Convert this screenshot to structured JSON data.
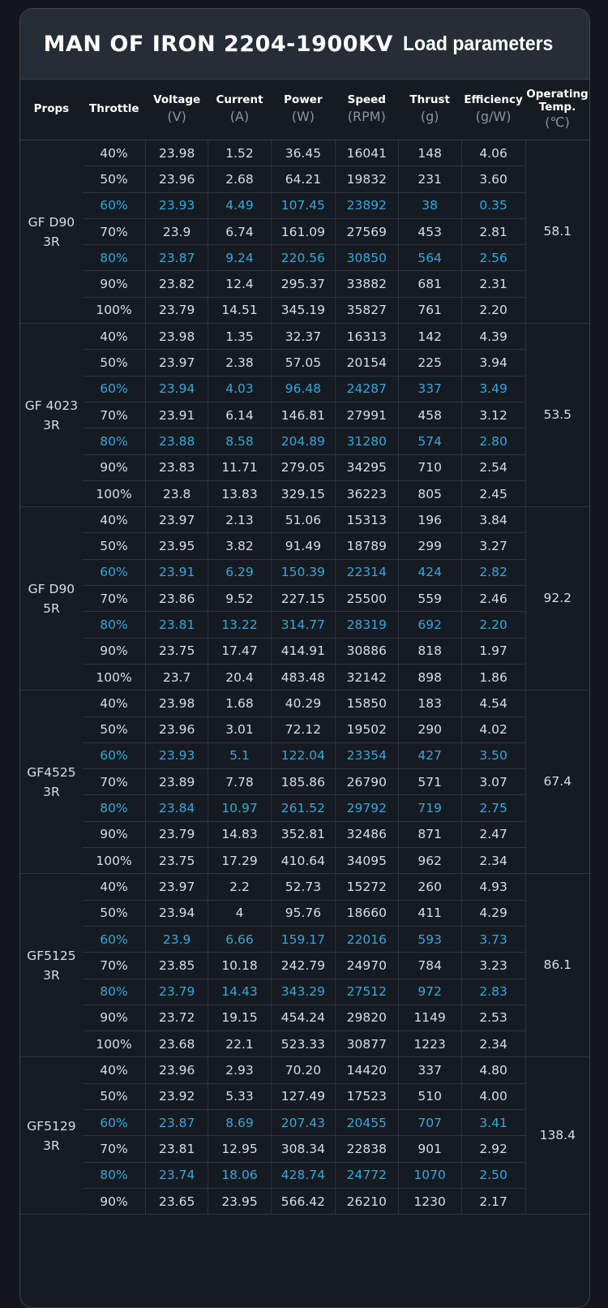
{
  "title": {
    "main": "MAN OF IRON 2204-1900KV",
    "sub": "Load parameters"
  },
  "headers": [
    {
      "label": "Props",
      "unit": ""
    },
    {
      "label": "Throttle",
      "unit": ""
    },
    {
      "label": "Voltage",
      "unit": "(V)"
    },
    {
      "label": "Current",
      "unit": "(A)"
    },
    {
      "label": "Power",
      "unit": "(W)"
    },
    {
      "label": "Speed",
      "unit": "(RPM)"
    },
    {
      "label": "Thrust",
      "unit": "(g)"
    },
    {
      "label": "Efficiency",
      "unit": "(g/W)"
    },
    {
      "label": "Operating Temp.",
      "unit": "(℃)"
    }
  ],
  "highlight_color": "#35a7dc",
  "groups": [
    {
      "prop": [
        "GF D90",
        "3R"
      ],
      "temp": "58.1",
      "rows": [
        [
          "40%",
          "23.98",
          "1.52",
          "36.45",
          "16041",
          "148",
          "4.06"
        ],
        [
          "50%",
          "23.96",
          "2.68",
          "64.21",
          "19832",
          "231",
          "3.60"
        ],
        [
          "60%",
          "23.93",
          "4.49",
          "107.45",
          "23892",
          "38",
          "0.35"
        ],
        [
          "70%",
          "23.9",
          "6.74",
          "161.09",
          "27569",
          "453",
          "2.81"
        ],
        [
          "80%",
          "23.87",
          "9.24",
          "220.56",
          "30850",
          "564",
          "2.56"
        ],
        [
          "90%",
          "23.82",
          "12.4",
          "295.37",
          "33882",
          "681",
          "2.31"
        ],
        [
          "100%",
          "23.79",
          "14.51",
          "345.19",
          "35827",
          "761",
          "2.20"
        ]
      ]
    },
    {
      "prop": [
        "GF 4023",
        "3R"
      ],
      "temp": "53.5",
      "rows": [
        [
          "40%",
          "23.98",
          "1.35",
          "32.37",
          "16313",
          "142",
          "4.39"
        ],
        [
          "50%",
          "23.97",
          "2.38",
          "57.05",
          "20154",
          "225",
          "3.94"
        ],
        [
          "60%",
          "23.94",
          "4.03",
          "96.48",
          "24287",
          "337",
          "3.49"
        ],
        [
          "70%",
          "23.91",
          "6.14",
          "146.81",
          "27991",
          "458",
          "3.12"
        ],
        [
          "80%",
          "23.88",
          "8.58",
          "204.89",
          "31280",
          "574",
          "2.80"
        ],
        [
          "90%",
          "23.83",
          "11.71",
          "279.05",
          "34295",
          "710",
          "2.54"
        ],
        [
          "100%",
          "23.8",
          "13.83",
          "329.15",
          "36223",
          "805",
          "2.45"
        ]
      ]
    },
    {
      "prop": [
        "GF D90",
        "5R"
      ],
      "temp": "92.2",
      "rows": [
        [
          "40%",
          "23.97",
          "2.13",
          "51.06",
          "15313",
          "196",
          "3.84"
        ],
        [
          "50%",
          "23.95",
          "3.82",
          "91.49",
          "18789",
          "299",
          "3.27"
        ],
        [
          "60%",
          "23.91",
          "6.29",
          "150.39",
          "22314",
          "424",
          "2.82"
        ],
        [
          "70%",
          "23.86",
          "9.52",
          "227.15",
          "25500",
          "559",
          "2.46"
        ],
        [
          "80%",
          "23.81",
          "13.22",
          "314.77",
          "28319",
          "692",
          "2.20"
        ],
        [
          "90%",
          "23.75",
          "17.47",
          "414.91",
          "30886",
          "818",
          "1.97"
        ],
        [
          "100%",
          "23.7",
          "20.4",
          "483.48",
          "32142",
          "898",
          "1.86"
        ]
      ]
    },
    {
      "prop": [
        "GF4525",
        "3R"
      ],
      "temp": "67.4",
      "rows": [
        [
          "40%",
          "23.98",
          "1.68",
          "40.29",
          "15850",
          "183",
          "4.54"
        ],
        [
          "50%",
          "23.96",
          "3.01",
          "72.12",
          "19502",
          "290",
          "4.02"
        ],
        [
          "60%",
          "23.93",
          "5.1",
          "122.04",
          "23354",
          "427",
          "3.50"
        ],
        [
          "70%",
          "23.89",
          "7.78",
          "185.86",
          "26790",
          "571",
          "3.07"
        ],
        [
          "80%",
          "23.84",
          "10.97",
          "261.52",
          "29792",
          "719",
          "2.75"
        ],
        [
          "90%",
          "23.79",
          "14.83",
          "352.81",
          "32486",
          "871",
          "2.47"
        ],
        [
          "100%",
          "23.75",
          "17.29",
          "410.64",
          "34095",
          "962",
          "2.34"
        ]
      ]
    },
    {
      "prop": [
        "GF5125",
        "3R"
      ],
      "temp": "86.1",
      "rows": [
        [
          "40%",
          "23.97",
          "2.2",
          "52.73",
          "15272",
          "260",
          "4.93"
        ],
        [
          "50%",
          "23.94",
          "4",
          "95.76",
          "18660",
          "411",
          "4.29"
        ],
        [
          "60%",
          "23.9",
          "6.66",
          "159.17",
          "22016",
          "593",
          "3.73"
        ],
        [
          "70%",
          "23.85",
          "10.18",
          "242.79",
          "24970",
          "784",
          "3.23"
        ],
        [
          "80%",
          "23.79",
          "14.43",
          "343.29",
          "27512",
          "972",
          "2.83"
        ],
        [
          "90%",
          "23.72",
          "19.15",
          "454.24",
          "29820",
          "1149",
          "2.53"
        ],
        [
          "100%",
          "23.68",
          "22.1",
          "523.33",
          "30877",
          "1223",
          "2.34"
        ]
      ]
    },
    {
      "prop": [
        "GF5129",
        "3R"
      ],
      "temp": "138.4",
      "rows": [
        [
          "40%",
          "23.96",
          "2.93",
          "70.20",
          "14420",
          "337",
          "4.80"
        ],
        [
          "50%",
          "23.92",
          "5.33",
          "127.49",
          "17523",
          "510",
          "4.00"
        ],
        [
          "60%",
          "23.87",
          "8.69",
          "207.43",
          "20455",
          "707",
          "3.41"
        ],
        [
          "70%",
          "23.81",
          "12.95",
          "308.34",
          "22838",
          "901",
          "2.92"
        ],
        [
          "80%",
          "23.74",
          "18.06",
          "428.74",
          "24772",
          "1070",
          "2.50"
        ],
        [
          "90%",
          "23.65",
          "23.95",
          "566.42",
          "26210",
          "1230",
          "2.17"
        ]
      ]
    }
  ]
}
